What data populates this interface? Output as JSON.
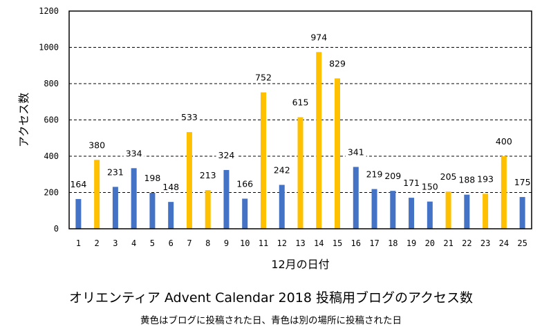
{
  "chart_data": {
    "type": "bar",
    "title": "オリエンティア Advent Calendar 2018 投稿用ブログのアクセス数",
    "subtitle": "黄色はブログに投稿された日、青色は別の場所に投稿された日",
    "xlabel": "12月の日付",
    "ylabel": "アクセス数",
    "ylim": [
      0,
      1200
    ],
    "yticks": [
      "0",
      "200",
      "400",
      "600",
      "800",
      "1000",
      "1200"
    ],
    "ytick_values": [
      0,
      200,
      400,
      600,
      800,
      1000,
      1200
    ],
    "grid": "horizontal-dashed",
    "categories": [
      "1",
      "2",
      "3",
      "4",
      "5",
      "6",
      "7",
      "8",
      "9",
      "10",
      "11",
      "12",
      "13",
      "14",
      "15",
      "16",
      "17",
      "18",
      "19",
      "20",
      "21",
      "22",
      "23",
      "24",
      "25"
    ],
    "values": [
      164,
      380,
      231,
      334,
      198,
      148,
      533,
      213,
      324,
      166,
      752,
      242,
      615,
      974,
      829,
      341,
      219,
      209,
      171,
      150,
      205,
      188,
      193,
      400,
      175
    ],
    "bar_type": [
      "other",
      "blog",
      "other",
      "other",
      "other",
      "other",
      "blog",
      "blog",
      "other",
      "other",
      "blog",
      "other",
      "blog",
      "blog",
      "blog",
      "other",
      "other",
      "other",
      "other",
      "other",
      "blog",
      "other",
      "blog",
      "blog",
      "other"
    ],
    "colors": {
      "blog": "#ffc000",
      "other": "#4472c4"
    }
  }
}
